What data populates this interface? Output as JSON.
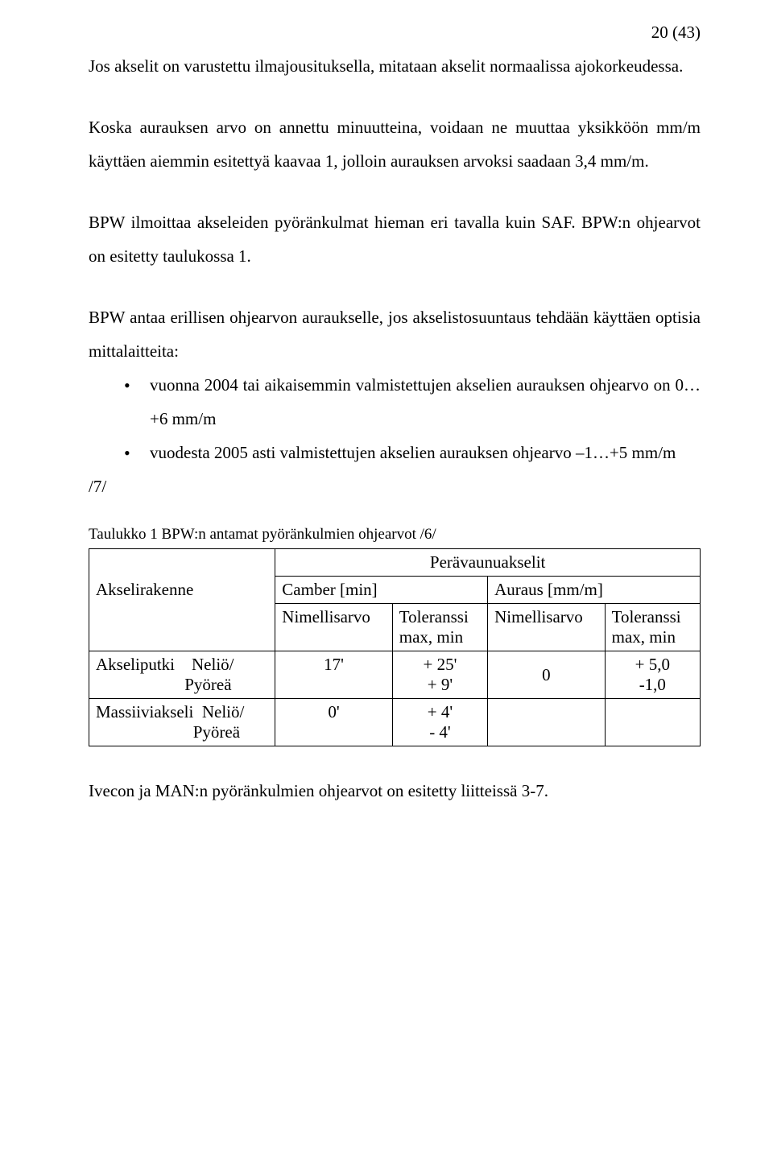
{
  "page_number": "20 (43)",
  "paragraphs": {
    "p1": "Jos akselit on varustettu ilmajousituksella, mitataan akselit normaalissa ajokorkeudessa.",
    "p2": "Koska aurauksen arvo on annettu minuutteina, voidaan ne muuttaa yksikköön mm/m käyttäen aiemmin esitettyä kaavaa 1, jolloin aurauksen arvoksi saadaan 3,4 mm/m.",
    "p3": "BPW ilmoittaa akseleiden pyöränkulmat hieman eri tavalla kuin SAF. BPW:n ohjearvot on esitetty taulukossa 1.",
    "p4": "BPW antaa erillisen ohjearvon auraukselle, jos akselistosuuntaus tehdään käyttäen optisia mittalaitteita:",
    "bullet1": "vuonna 2004 tai aikaisemmin valmistettujen akselien aurauksen ohjearvo on 0…+6 mm/m",
    "bullet2": "vuodesta 2005 asti valmistettujen akselien aurauksen ohjearvo –1…+5 mm/m",
    "ref": "/7/",
    "last": "Ivecon ja MAN:n pyöränkulmien ohjearvot on esitetty liitteissä 3-7."
  },
  "table": {
    "caption": "Taulukko 1 BPW:n antamat pyöränkulmien ohjearvot /6/",
    "title": "Perävaunuakselit",
    "headers": {
      "c1": "Akselirakenne",
      "c2": "Camber [min]",
      "c3": "Auraus [mm/m]",
      "sub_nimell": "Nimellisarvo",
      "sub_tol1": "Toleranssi",
      "sub_tol1b": "max, min",
      "sub_tol2": "Toleranssi",
      "sub_tol2b": "max, min"
    },
    "rows": {
      "r1c1a": "Akseliputki",
      "r1c1b": "Neliö/",
      "r1c1c": "Pyöreä",
      "r1c2": "17'",
      "r1c3a": "+ 25'",
      "r1c3b": "+ 9'",
      "r1c4": "0",
      "r1c5a": "+ 5,0",
      "r1c5b": "-1,0",
      "r2c1a": "Massiiviakseli",
      "r2c1b": "Neliö/",
      "r2c1c": "Pyöreä",
      "r2c2": "0'",
      "r2c3a": "+ 4'",
      "r2c3b": "- 4'"
    }
  }
}
